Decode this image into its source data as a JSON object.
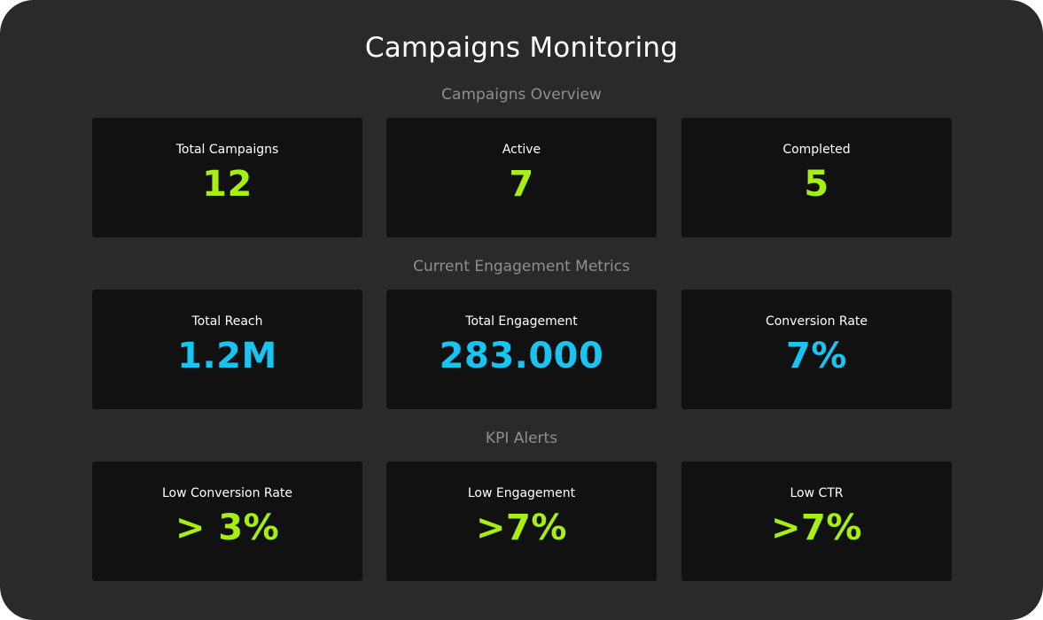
{
  "header": {
    "title": "Campaigns Monitoring"
  },
  "sections": {
    "overview": {
      "heading": "Campaigns Overview",
      "cards": [
        {
          "label": "Total Campaigns",
          "value": "12"
        },
        {
          "label": "Active",
          "value": "7"
        },
        {
          "label": "Completed",
          "value": "5"
        }
      ]
    },
    "engagement": {
      "heading": "Current Engagement Metrics",
      "cards": [
        {
          "label": "Total Reach",
          "value": "1.2M"
        },
        {
          "label": "Total Engagement",
          "value": "283.000"
        },
        {
          "label": "Conversion Rate",
          "value": "7%"
        }
      ]
    },
    "alerts": {
      "heading": "KPI Alerts",
      "cards": [
        {
          "label": "Low Conversion Rate",
          "value": "> 3%"
        },
        {
          "label": "Low Engagement",
          "value": ">7%"
        },
        {
          "label": "Low CTR",
          "value": ">7%"
        }
      ]
    }
  },
  "colors": {
    "panel_background": "#2a2a2a",
    "card_background": "#111111",
    "accent_green": "#a7ef12",
    "accent_cyan": "#17c4f2",
    "heading_gray": "#8f8f8f"
  }
}
